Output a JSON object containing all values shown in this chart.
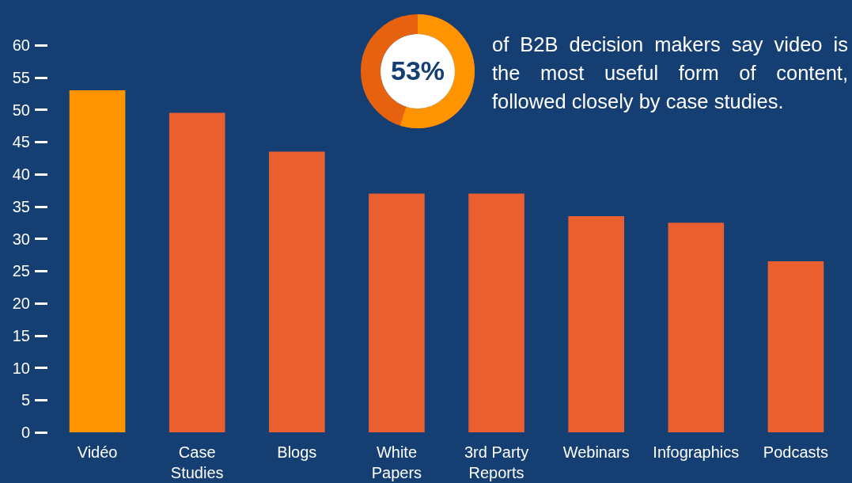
{
  "chart_data": {
    "type": "bar",
    "categories": [
      "Vidéo",
      "Case Studies",
      "Blogs",
      "White Papers",
      "3rd Party Reports",
      "Webinars",
      "Infographics",
      "Podcasts"
    ],
    "values": [
      53,
      49.5,
      43.5,
      37,
      37,
      33.5,
      32.5,
      26.5
    ],
    "colors": [
      "#ff9400",
      "#e95f30",
      "#e95f30",
      "#e95f30",
      "#e95f30",
      "#e95f30",
      "#e95f30",
      "#e95f30"
    ],
    "ylim": [
      0,
      60
    ],
    "yticks": [
      0,
      5,
      10,
      15,
      20,
      25,
      30,
      35,
      40,
      45,
      50,
      55,
      60
    ],
    "grid": false,
    "annotations": [
      "53%",
      "of B2B decision makers say video is the most useful form of content, followed closely by case studies."
    ]
  }
}
